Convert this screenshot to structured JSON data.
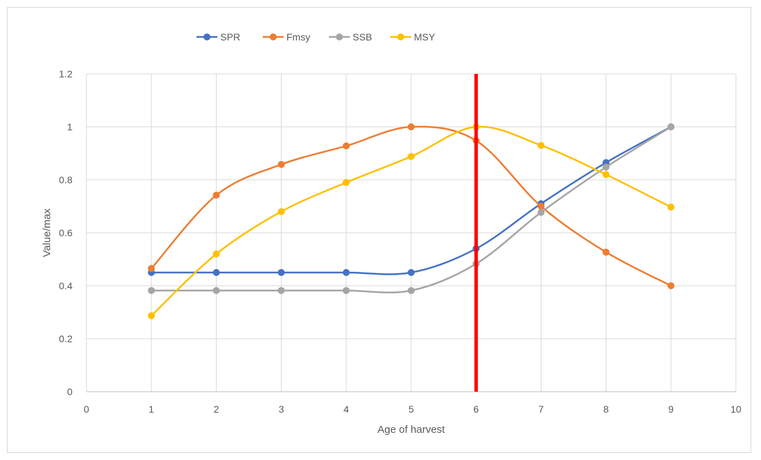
{
  "chart_data": {
    "type": "line",
    "smooth": true,
    "title": "",
    "xlabel": "Age of harvest",
    "ylabel": "Value/max",
    "xlim": [
      0,
      10
    ],
    "ylim": [
      0,
      1.2
    ],
    "x_ticks": [
      "0",
      "1",
      "2",
      "3",
      "4",
      "5",
      "6",
      "7",
      "8",
      "9",
      "10"
    ],
    "y_ticks": [
      "0",
      "0.2",
      "0.4",
      "0.6",
      "0.8",
      "1",
      "1.2"
    ],
    "grid": true,
    "legend_position": "top",
    "x": [
      1,
      2,
      3,
      4,
      5,
      6,
      7,
      8,
      9
    ],
    "series": [
      {
        "name": "SPR",
        "color": "#4472C4",
        "values": [
          0.45,
          0.45,
          0.45,
          0.45,
          0.45,
          0.54,
          0.71,
          0.865,
          1.0
        ]
      },
      {
        "name": "Fmsy",
        "color": "#ED7D31",
        "values": [
          0.465,
          0.742,
          0.858,
          0.928,
          1.0,
          0.948,
          0.7,
          0.527,
          0.4
        ]
      },
      {
        "name": "SSB",
        "color": "#A5A5A5",
        "values": [
          0.382,
          0.382,
          0.382,
          0.382,
          0.382,
          0.483,
          0.677,
          0.848,
          1.0
        ]
      },
      {
        "name": "MSY",
        "color": "#FFC000",
        "values": [
          0.287,
          0.52,
          0.68,
          0.79,
          0.888,
          1.0,
          0.93,
          0.82,
          0.697
        ]
      }
    ],
    "annotations": [
      {
        "type": "vertical-line",
        "x": 6,
        "color": "#FF0000"
      }
    ]
  }
}
